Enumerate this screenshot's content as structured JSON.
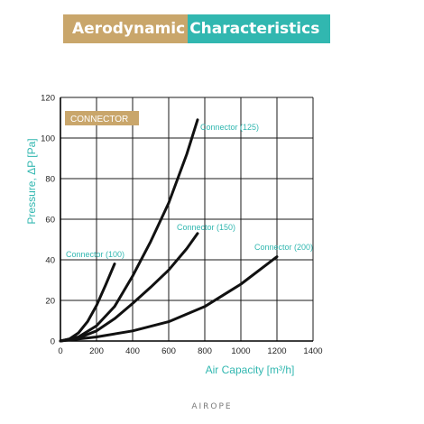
{
  "header": {
    "title_part1": "Aerodynamic",
    "title_part2": "Characteristics"
  },
  "colors": {
    "gold": "#c9a66b",
    "teal": "#31b7b0",
    "line": "#111111"
  },
  "legend": {
    "label": "CONNECTOR"
  },
  "brand": {
    "text": "AIROPE"
  },
  "chart_data": {
    "type": "line",
    "title": "",
    "xlabel": "Air Capacity [m³/h]",
    "ylabel": "Pressure, ΔP [Pa]",
    "xlim": [
      0,
      1400
    ],
    "ylim": [
      0,
      120
    ],
    "xticks": [
      0,
      200,
      400,
      600,
      800,
      1000,
      1200,
      1400
    ],
    "yticks": [
      0,
      20,
      40,
      60,
      80,
      100,
      120
    ],
    "grid": true,
    "series": [
      {
        "name": "Connector (100)",
        "x": [
          0,
          50,
          100,
          150,
          200,
          250,
          300
        ],
        "y": [
          0,
          1,
          4,
          9.5,
          17.5,
          27.5,
          38
        ]
      },
      {
        "name": "Connector (125)",
        "x": [
          0,
          100,
          200,
          300,
          400,
          500,
          600,
          700,
          760
        ],
        "y": [
          0,
          2,
          7.5,
          17,
          32,
          49,
          68,
          92,
          109
        ]
      },
      {
        "name": "Connector (150)",
        "x": [
          0,
          100,
          200,
          300,
          400,
          500,
          600,
          700,
          760
        ],
        "y": [
          0,
          1.5,
          5,
          11,
          18.5,
          26.5,
          35,
          45.5,
          53
        ]
      },
      {
        "name": "Connector (200)",
        "x": [
          0,
          200,
          400,
          600,
          800,
          1000,
          1200
        ],
        "y": [
          0,
          2,
          5,
          9.5,
          17,
          28,
          41.5
        ]
      }
    ]
  }
}
